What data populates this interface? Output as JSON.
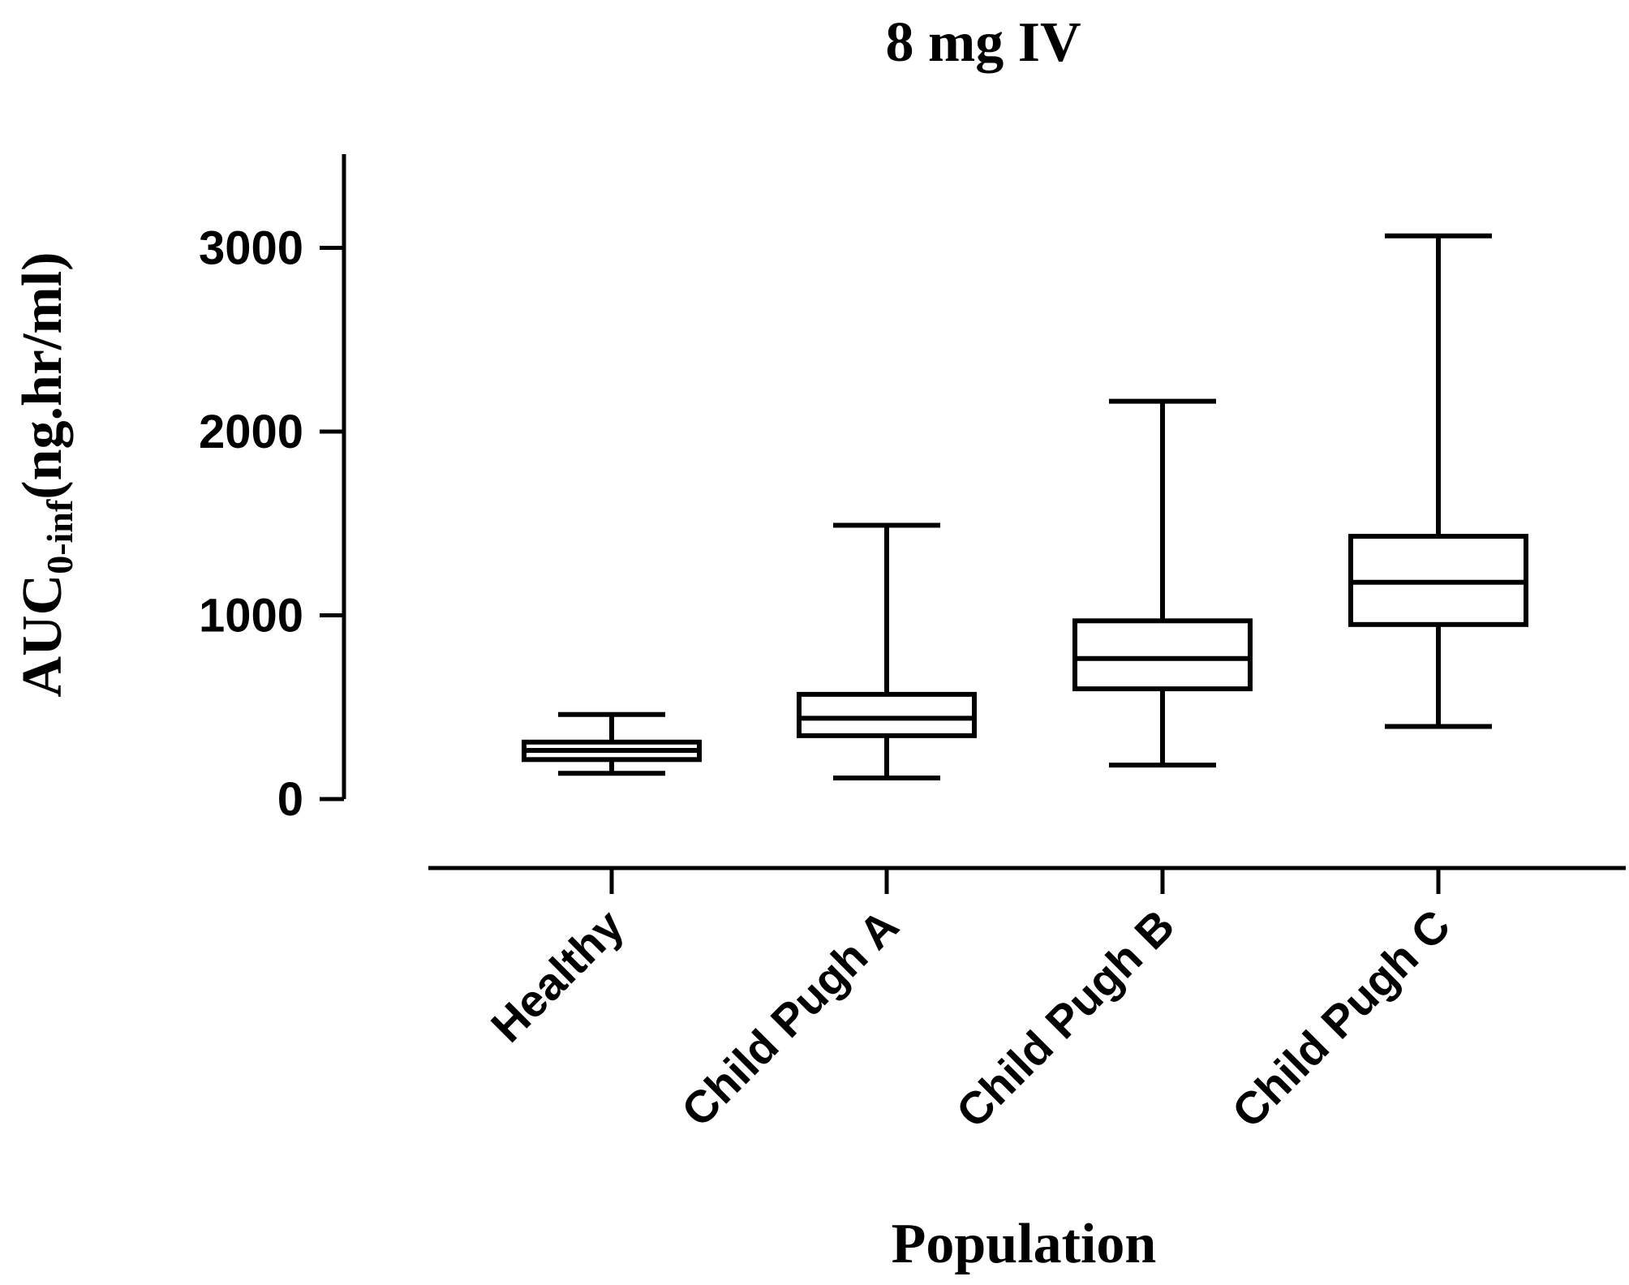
{
  "chart_data": {
    "type": "boxplot",
    "title": "8 mg IV",
    "xlabel": "Population",
    "ylabel": {
      "main": "AUC",
      "subscript": "0-inf",
      "unit": "(ng.hr/ml)"
    },
    "ylim": [
      0,
      3500
    ],
    "yticks": [
      {
        "value": 0,
        "label": "0"
      },
      {
        "value": 1000,
        "label": "1000"
      },
      {
        "value": 2000,
        "label": "2000"
      },
      {
        "value": 3000,
        "label": "3000"
      }
    ],
    "categories": [
      "Healthy",
      "Child Pugh A",
      "Child Pugh B",
      "Child Pugh C"
    ],
    "boxes": [
      {
        "name": "Healthy",
        "min": 140,
        "q1": 215,
        "median": 265,
        "q3": 310,
        "max": 460
      },
      {
        "name": "Child Pugh A",
        "min": 115,
        "q1": 345,
        "median": 440,
        "q3": 570,
        "max": 1490
      },
      {
        "name": "Child Pugh B",
        "min": 185,
        "q1": 600,
        "median": 765,
        "q3": 970,
        "max": 2165
      },
      {
        "name": "Child Pugh C",
        "min": 395,
        "q1": 950,
        "median": 1180,
        "q3": 1430,
        "max": 3065
      }
    ],
    "grid": false,
    "legend": "none",
    "stroke_color": "#000000"
  }
}
